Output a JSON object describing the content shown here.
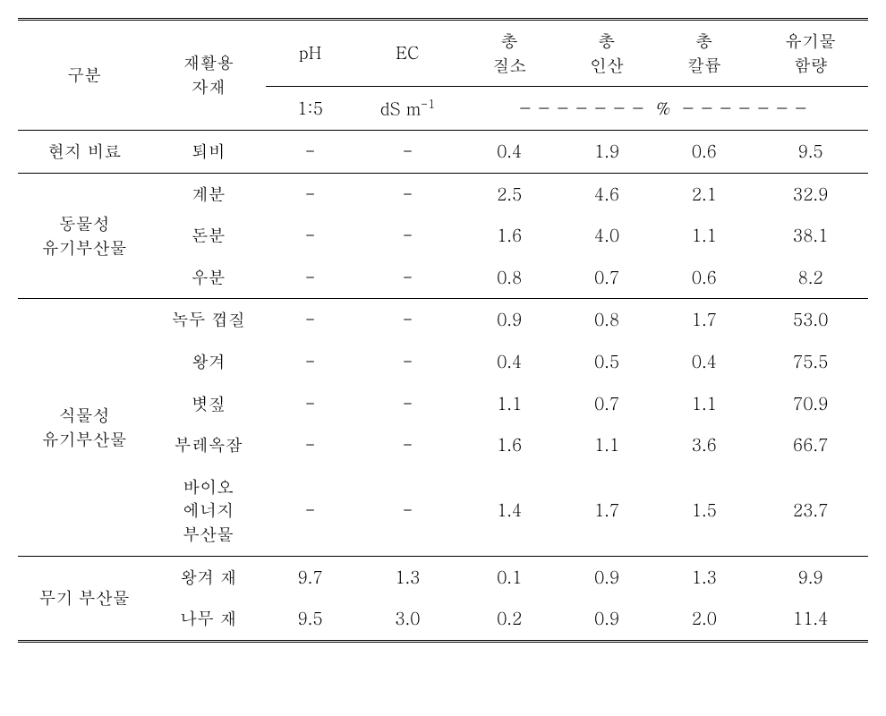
{
  "header": {
    "col1": "구분",
    "col2": "재활용\n자재",
    "col3": "pH",
    "col4": "EC",
    "col5": "총\n질소",
    "col6": "총\n인산",
    "col7": "총\n칼륨",
    "col8": "유기물\n함량",
    "sub_ph": "1:5",
    "sub_ec": "dS m",
    "sub_ec_sup": "-1",
    "pct_dash_left": "－－－－－－－",
    "pct_sym": "%",
    "pct_dash_right": "－－－－－－－"
  },
  "sections": {
    "local": {
      "name": "현지 비료",
      "rows": [
        {
          "mat": "퇴비",
          "ph": "-",
          "ec": "-",
          "n": "0.4",
          "p": "1.9",
          "k": "0.6",
          "om": "9.5"
        }
      ]
    },
    "animal": {
      "name": "동물성\n유기부산물",
      "rows": [
        {
          "mat": "계분",
          "ph": "-",
          "ec": "-",
          "n": "2.5",
          "p": "4.6",
          "k": "2.1",
          "om": "32.9"
        },
        {
          "mat": "돈분",
          "ph": "-",
          "ec": "-",
          "n": "1.6",
          "p": "4.0",
          "k": "1.1",
          "om": "38.1"
        },
        {
          "mat": "우분",
          "ph": "-",
          "ec": "-",
          "n": "0.8",
          "p": "0.7",
          "k": "0.6",
          "om": "8.2"
        }
      ]
    },
    "plant": {
      "name": "식물성\n유기부산물",
      "rows": [
        {
          "mat": "녹두 껍질",
          "ph": "-",
          "ec": "-",
          "n": "0.9",
          "p": "0.8",
          "k": "1.7",
          "om": "53.0"
        },
        {
          "mat": "왕겨",
          "ph": "-",
          "ec": "-",
          "n": "0.4",
          "p": "0.5",
          "k": "0.4",
          "om": "75.5"
        },
        {
          "mat": "볏짚",
          "ph": "-",
          "ec": "-",
          "n": "1.1",
          "p": "0.7",
          "k": "1.1",
          "om": "70.9"
        },
        {
          "mat": "부레옥잠",
          "ph": "-",
          "ec": "-",
          "n": "1.6",
          "p": "1.1",
          "k": "3.6",
          "om": "66.7"
        },
        {
          "mat": "바이오\n에너지\n부산물",
          "ph": "-",
          "ec": "-",
          "n": "1.4",
          "p": "1.7",
          "k": "1.5",
          "om": "23.7"
        }
      ]
    },
    "inorganic": {
      "name": "무기 부산물",
      "rows": [
        {
          "mat": "왕겨 재",
          "ph": "9.7",
          "ec": "1.3",
          "n": "0.1",
          "p": "0.9",
          "k": "1.3",
          "om": "9.9"
        },
        {
          "mat": "나무 재",
          "ph": "9.5",
          "ec": "3.0",
          "n": "0.2",
          "p": "0.9",
          "k": "2.0",
          "om": "11.4"
        }
      ]
    }
  }
}
